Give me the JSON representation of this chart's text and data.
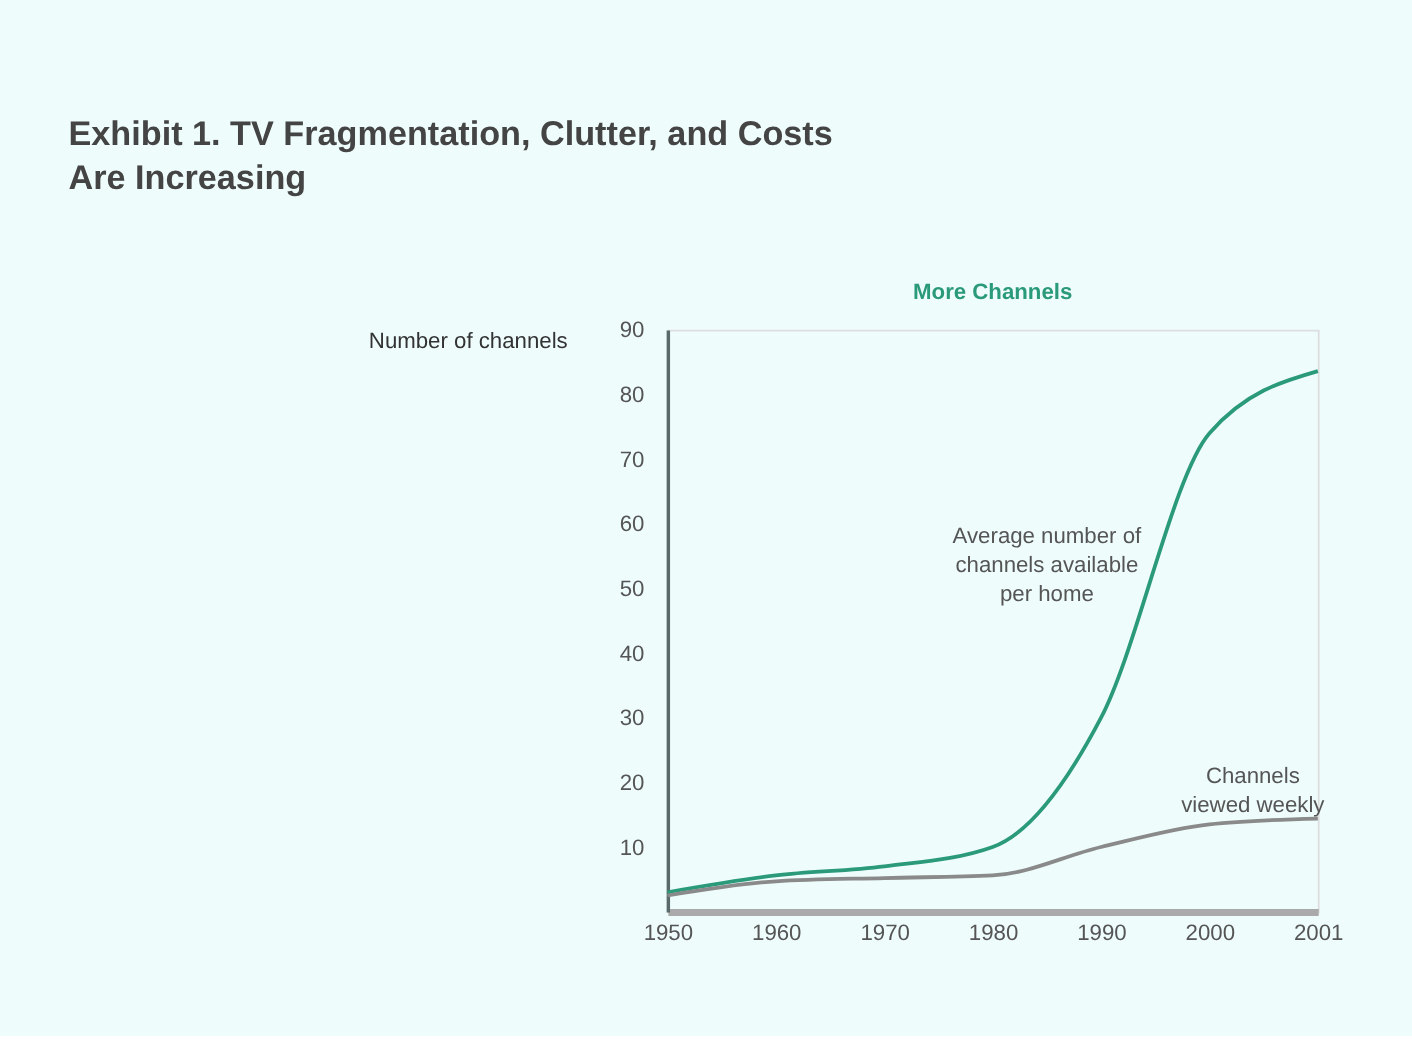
{
  "chart_data": {
    "type": "line",
    "title": "Exhibit 1. TV Fragmentation, Clutter, and Costs Are Increasing",
    "subtitle": "More Channels",
    "ylabel": "Number of channels",
    "categories": [
      "1950",
      "1960",
      "1970",
      "1980",
      "1990",
      "2000",
      "2001"
    ],
    "ylim": [
      0,
      90
    ],
    "yticks": [
      10,
      20,
      30,
      40,
      50,
      60,
      70,
      80,
      90
    ],
    "grid": false,
    "legend": false,
    "marker": "none",
    "line_style": "solid",
    "series": [
      {
        "name": "Average number of channels available per home",
        "color": "#2a9a7a",
        "values": [
          3,
          5.6,
          7,
          10,
          30,
          74,
          83.6
        ]
      },
      {
        "name": "Channels viewed weekly",
        "color": "#8a8a8a",
        "values": [
          2.5,
          4.7,
          5.2,
          5.6,
          10,
          13.5,
          14.4
        ]
      }
    ]
  }
}
